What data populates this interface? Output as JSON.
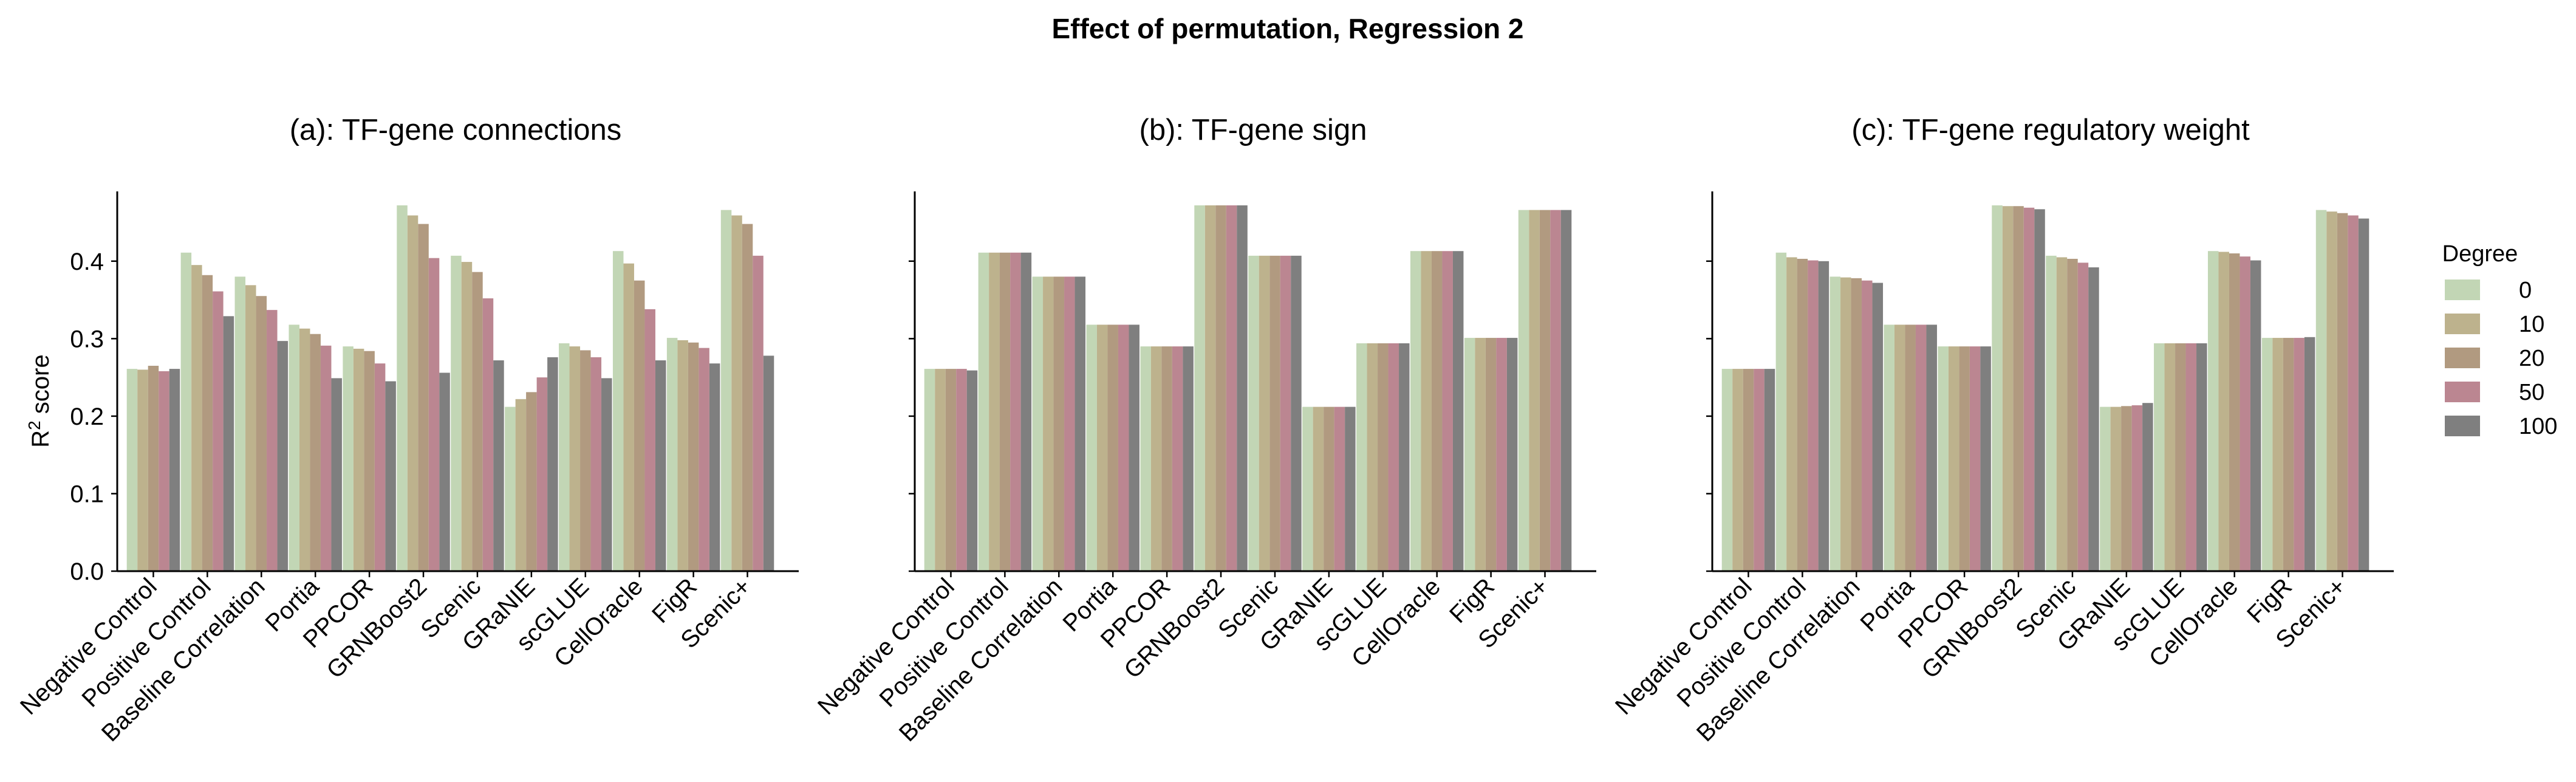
{
  "figure": {
    "suptitle": "Effect of permutation, Regression 2",
    "ylabel_main": "R",
    "ylabel_sup": "2",
    "ylabel_rest": " score"
  },
  "legend": {
    "title": "Degree",
    "entries": [
      {
        "label": "0",
        "color": "#c2d6b5"
      },
      {
        "label": "10",
        "color": "#bdb28d"
      },
      {
        "label": "20",
        "color": "#b19a80"
      },
      {
        "label": "50",
        "color": "#bb8691"
      },
      {
        "label": "100",
        "color": "#7f7f7f"
      }
    ]
  },
  "chart_data": [
    {
      "type": "bar",
      "title": "(a): TF-gene connections",
      "ylabel": "R² score",
      "ylim": [
        0,
        0.49
      ],
      "yticks": [
        "0.0",
        "0.1",
        "0.2",
        "0.3",
        "0.4"
      ],
      "categories": [
        "Negative Control",
        "Positive Control",
        "Baseline Correlation",
        "Portia",
        "PPCOR",
        "GRNBoost2",
        "Scenic",
        "GRaNIE",
        "scGLUE",
        "CellOracle",
        "FigR",
        "Scenic+"
      ],
      "series": [
        {
          "name": "0",
          "values": [
            0.261,
            0.411,
            0.38,
            0.318,
            0.29,
            0.472,
            0.407,
            0.212,
            0.294,
            0.413,
            0.301,
            0.466
          ]
        },
        {
          "name": "10",
          "values": [
            0.26,
            0.395,
            0.369,
            0.313,
            0.287,
            0.459,
            0.399,
            0.222,
            0.29,
            0.397,
            0.298,
            0.459
          ]
        },
        {
          "name": "20",
          "values": [
            0.265,
            0.382,
            0.355,
            0.306,
            0.284,
            0.448,
            0.386,
            0.231,
            0.285,
            0.375,
            0.295,
            0.448
          ]
        },
        {
          "name": "50",
          "values": [
            0.258,
            0.361,
            0.337,
            0.291,
            0.268,
            0.404,
            0.352,
            0.25,
            0.276,
            0.338,
            0.288,
            0.407
          ]
        },
        {
          "name": "100",
          "values": [
            0.261,
            0.329,
            0.297,
            0.249,
            0.245,
            0.256,
            0.272,
            0.276,
            0.249,
            0.272,
            0.268,
            0.278
          ]
        }
      ]
    },
    {
      "type": "bar",
      "title": "(b): TF-gene sign",
      "ylim": [
        0,
        0.49
      ],
      "categories": [
        "Negative Control",
        "Positive Control",
        "Baseline Correlation",
        "Portia",
        "PPCOR",
        "GRNBoost2",
        "Scenic",
        "GRaNIE",
        "scGLUE",
        "CellOracle",
        "FigR",
        "Scenic+"
      ],
      "series": [
        {
          "name": "0",
          "values": [
            0.261,
            0.411,
            0.38,
            0.318,
            0.29,
            0.472,
            0.407,
            0.212,
            0.294,
            0.413,
            0.301,
            0.466
          ]
        },
        {
          "name": "10",
          "values": [
            0.261,
            0.411,
            0.38,
            0.318,
            0.29,
            0.472,
            0.407,
            0.212,
            0.294,
            0.413,
            0.301,
            0.466
          ]
        },
        {
          "name": "20",
          "values": [
            0.261,
            0.411,
            0.38,
            0.318,
            0.29,
            0.472,
            0.407,
            0.212,
            0.294,
            0.413,
            0.301,
            0.466
          ]
        },
        {
          "name": "50",
          "values": [
            0.261,
            0.411,
            0.38,
            0.318,
            0.29,
            0.472,
            0.407,
            0.212,
            0.294,
            0.413,
            0.301,
            0.466
          ]
        },
        {
          "name": "100",
          "values": [
            0.259,
            0.411,
            0.38,
            0.318,
            0.29,
            0.472,
            0.407,
            0.212,
            0.294,
            0.413,
            0.301,
            0.466
          ]
        }
      ]
    },
    {
      "type": "bar",
      "title": "(c): TF-gene regulatory weight",
      "ylim": [
        0,
        0.49
      ],
      "categories": [
        "Negative Control",
        "Positive Control",
        "Baseline Correlation",
        "Portia",
        "PPCOR",
        "GRNBoost2",
        "Scenic",
        "GRaNIE",
        "scGLUE",
        "CellOracle",
        "FigR",
        "Scenic+"
      ],
      "series": [
        {
          "name": "0",
          "values": [
            0.261,
            0.411,
            0.38,
            0.318,
            0.29,
            0.472,
            0.407,
            0.212,
            0.294,
            0.413,
            0.301,
            0.466
          ]
        },
        {
          "name": "10",
          "values": [
            0.261,
            0.405,
            0.379,
            0.318,
            0.29,
            0.471,
            0.405,
            0.212,
            0.294,
            0.412,
            0.301,
            0.464
          ]
        },
        {
          "name": "20",
          "values": [
            0.261,
            0.403,
            0.378,
            0.318,
            0.29,
            0.471,
            0.403,
            0.213,
            0.294,
            0.41,
            0.301,
            0.462
          ]
        },
        {
          "name": "50",
          "values": [
            0.261,
            0.401,
            0.375,
            0.318,
            0.29,
            0.469,
            0.398,
            0.214,
            0.294,
            0.406,
            0.301,
            0.459
          ]
        },
        {
          "name": "100",
          "values": [
            0.261,
            0.4,
            0.372,
            0.318,
            0.29,
            0.467,
            0.392,
            0.217,
            0.294,
            0.401,
            0.302,
            0.455
          ]
        }
      ]
    }
  ]
}
